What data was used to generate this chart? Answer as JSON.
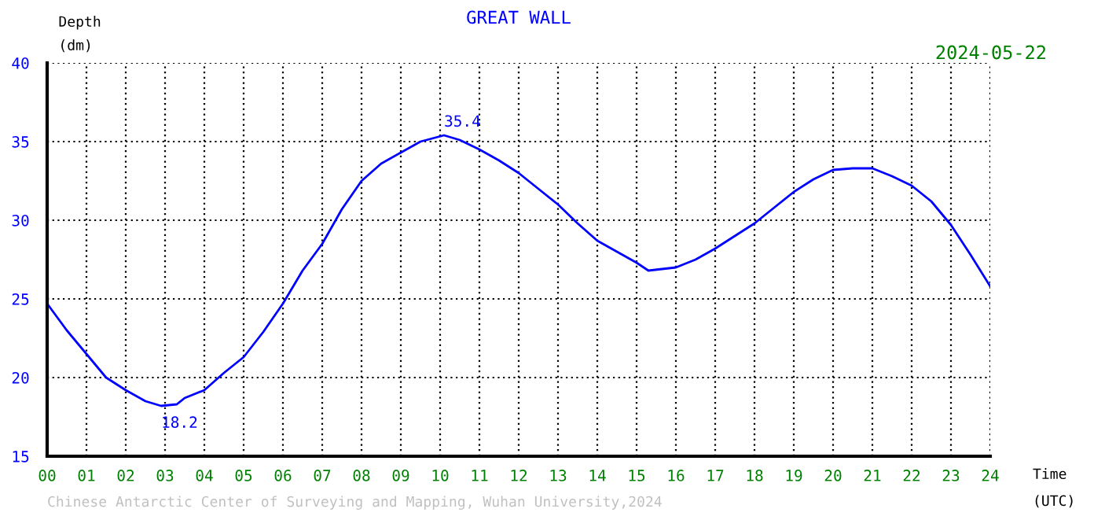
{
  "chart_data": {
    "type": "line",
    "title": "GREAT WALL",
    "xlabel": "Time\n(UTC)",
    "ylabel": "Depth\n(dm)",
    "annotations": [
      {
        "text": "35.4",
        "x": 10.1,
        "y": 35.4
      },
      {
        "text": "18.2",
        "x": 2.9,
        "y": 18.2
      },
      "2024-05-22",
      "Chinese Antarctic Center of Surveying and Mapping, Wuhan University,2024"
    ],
    "x": [
      0,
      0.5,
      1,
      1.5,
      2,
      2.5,
      2.9,
      3.3,
      3.5,
      4,
      4.5,
      5,
      5.5,
      6,
      6.5,
      7,
      7.5,
      8,
      8.5,
      9,
      9.5,
      10.1,
      10.5,
      11,
      11.5,
      12,
      12.5,
      13,
      13.5,
      14,
      14.5,
      15,
      15.3,
      16,
      16.5,
      17,
      17.5,
      18,
      18.5,
      19,
      19.5,
      20,
      20.5,
      21,
      21.5,
      22,
      22.5,
      23,
      23.5,
      24
    ],
    "series": [
      {
        "color": "#0000ff",
        "values": [
          24.7,
          23.0,
          21.5,
          20.0,
          19.2,
          18.5,
          18.2,
          18.3,
          18.7,
          19.2,
          20.3,
          21.3,
          22.9,
          24.7,
          26.8,
          28.5,
          30.7,
          32.5,
          33.6,
          34.3,
          35.0,
          35.4,
          35.1,
          34.5,
          33.8,
          33.0,
          32.0,
          31.0,
          29.8,
          28.7,
          28.0,
          27.3,
          26.8,
          27.0,
          27.5,
          28.2,
          29.0,
          29.8,
          30.8,
          31.8,
          32.6,
          33.2,
          33.3,
          33.3,
          32.8,
          32.2,
          31.2,
          29.7,
          27.8,
          25.8
        ]
      }
    ],
    "xlim": [
      0,
      24
    ],
    "ylim": [
      15,
      40
    ],
    "xticks": [
      {
        "value": 0,
        "label": "00"
      },
      {
        "value": 1,
        "label": "01"
      },
      {
        "value": 2,
        "label": "02"
      },
      {
        "value": 3,
        "label": "03"
      },
      {
        "value": 4,
        "label": "04"
      },
      {
        "value": 5,
        "label": "05"
      },
      {
        "value": 6,
        "label": "06"
      },
      {
        "value": 7,
        "label": "07"
      },
      {
        "value": 8,
        "label": "08"
      },
      {
        "value": 9,
        "label": "09"
      },
      {
        "value": 10,
        "label": "10"
      },
      {
        "value": 11,
        "label": "11"
      },
      {
        "value": 12,
        "label": "12"
      },
      {
        "value": 13,
        "label": "13"
      },
      {
        "value": 14,
        "label": "14"
      },
      {
        "value": 15,
        "label": "15"
      },
      {
        "value": 16,
        "label": "16"
      },
      {
        "value": 17,
        "label": "17"
      },
      {
        "value": 18,
        "label": "18"
      },
      {
        "value": 19,
        "label": "19"
      },
      {
        "value": 20,
        "label": "20"
      },
      {
        "value": 21,
        "label": "21"
      },
      {
        "value": 22,
        "label": "22"
      },
      {
        "value": 23,
        "label": "23"
      },
      {
        "value": 24,
        "label": "24"
      }
    ],
    "yticks": [
      15,
      20,
      25,
      30,
      35,
      40
    ],
    "grid": true,
    "line_style": "solid"
  }
}
